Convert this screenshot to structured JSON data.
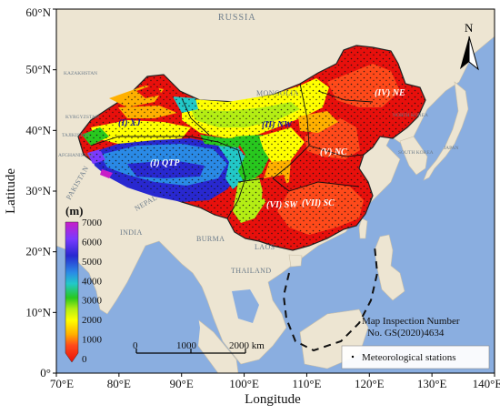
{
  "map": {
    "axes": {
      "x_label": "Longitude",
      "y_label": "Latitude",
      "x_ticks": [
        "70°E",
        "80°E",
        "90°E",
        "100°E",
        "110°E",
        "120°E",
        "130°E",
        "140°E"
      ],
      "y_ticks": [
        "0°",
        "10°N",
        "20°N",
        "30°N",
        "40°N",
        "50°N",
        "60°N"
      ]
    },
    "countries": {
      "russia": "RUSSIA",
      "kazakhstan": "KAZAKHSTAN",
      "mongolia": "MONGOLIA",
      "kyrgyzstan": "KYRGYZSTAN",
      "tajikistan": "TAJIKISTAN",
      "afghanistan": "AFGHANISTAN",
      "pakistan": "PAKISTAN",
      "india": "INDIA",
      "nepal": "NEPAL",
      "burma": "BURMA",
      "laos": "LAOS",
      "thailand": "THAILAND",
      "north_korea": "NORTH KOREA",
      "south_korea": "SOUTH KOREA",
      "japan": "JAPAN"
    },
    "regions": {
      "ne": "(IV) NE",
      "nw": "(II) NW",
      "xj": "(I) XJ",
      "qtp": "(I) QTP",
      "nc": "(V) NC",
      "sw": "(VI) SW",
      "sc": "(VII) SC"
    },
    "colorbar": {
      "unit": "(m)",
      "labels": [
        "7000",
        "6000",
        "5000",
        "4000",
        "3000",
        "2000",
        "1000",
        "0"
      ],
      "colors": [
        "#c81ec8",
        "#7a3aff",
        "#2828d0",
        "#2a8ae6",
        "#22c8c8",
        "#28c81e",
        "#b4ee14",
        "#ffff00",
        "#ffb000",
        "#ff4a1a",
        "#e8100c"
      ]
    },
    "scalebar": {
      "ticks": [
        "0",
        "1000",
        "2000 km"
      ]
    },
    "legend": {
      "stations": "Meteorological stations"
    },
    "note": {
      "line1": "Map Inspection Number",
      "line2": "No. GS(2020)4634"
    },
    "north": "N",
    "colors": {
      "ocean": "#8aaee0",
      "land": "#ede5d2",
      "frame": "#000000"
    }
  }
}
